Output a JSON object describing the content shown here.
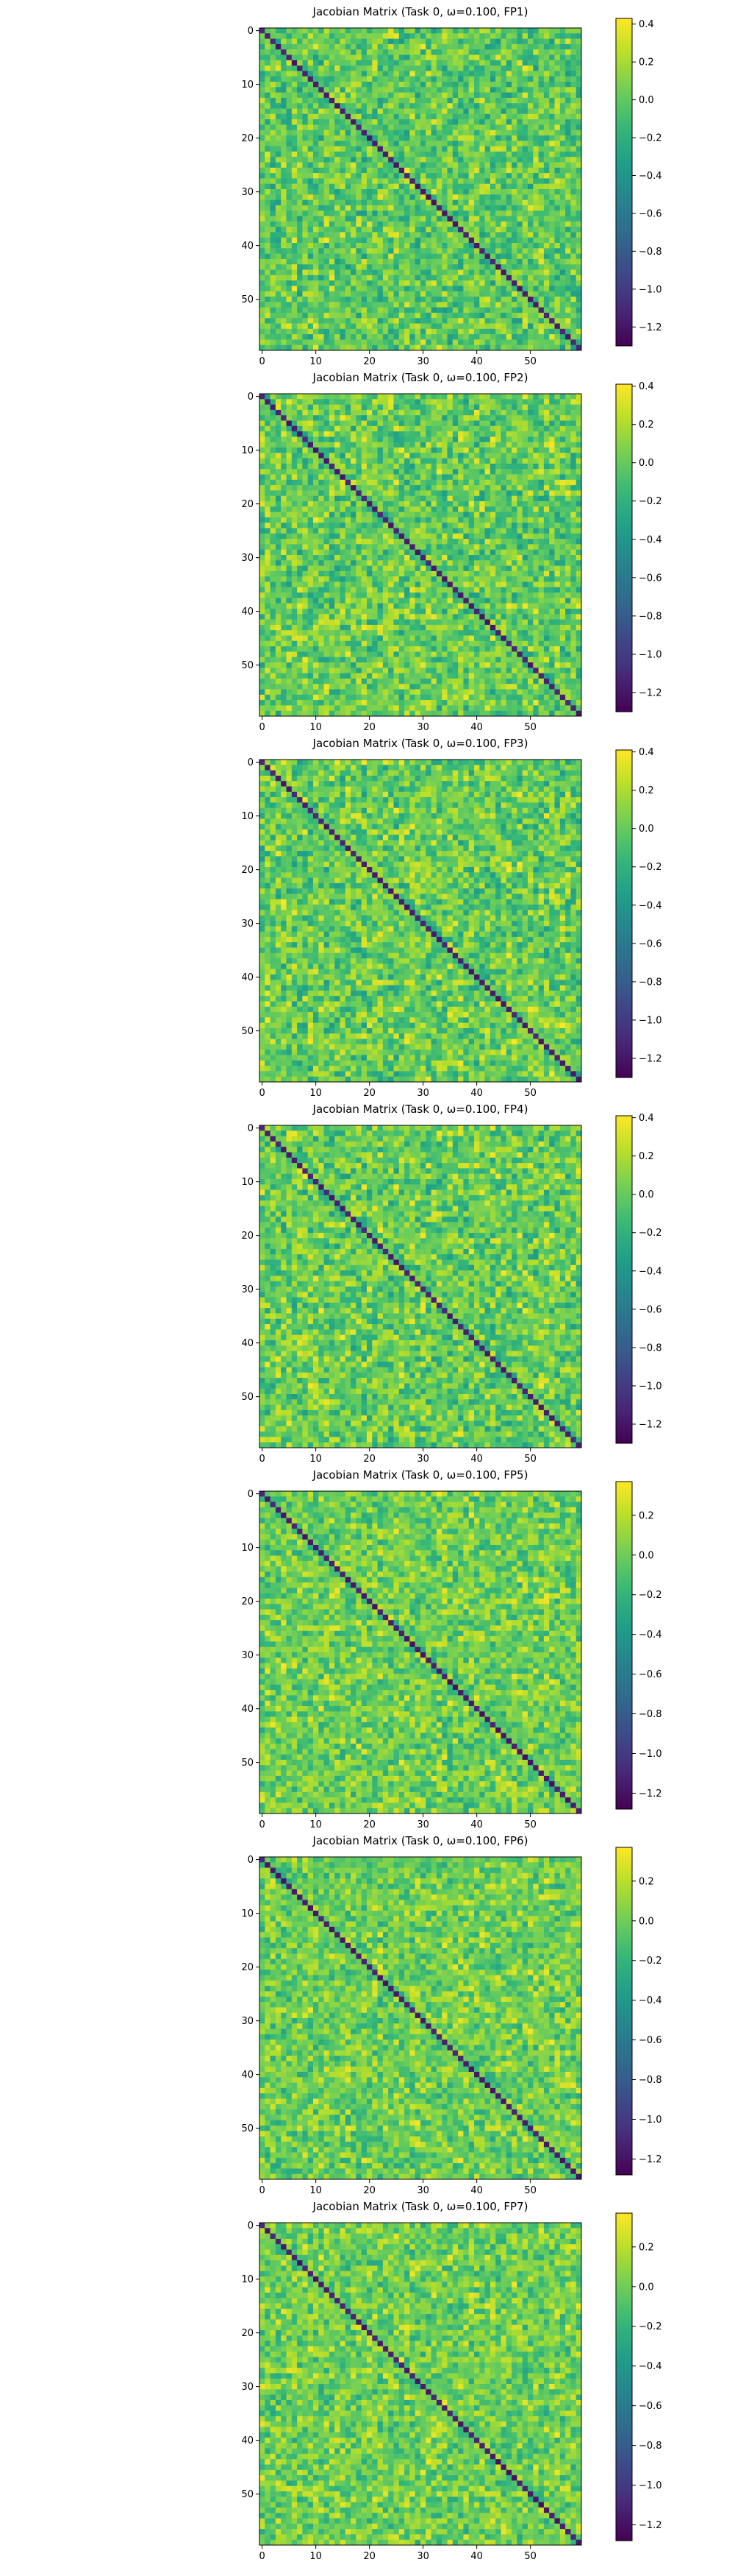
{
  "colormap": "viridis",
  "colormap_stops": [
    "#440154",
    "#482878",
    "#3e4989",
    "#31688e",
    "#26828e",
    "#1f9e89",
    "#35b779",
    "#6ece58",
    "#b5de2b",
    "#fde725"
  ],
  "chart_data": [
    {
      "type": "heatmap",
      "title": "Jacobian Matrix (Task 0, ω=0.100, FP1)",
      "shape": [
        60,
        60
      ],
      "xticks": [
        0,
        10,
        20,
        30,
        40,
        50
      ],
      "yticks": [
        0,
        10,
        20,
        30,
        40,
        50
      ],
      "colorbar": {
        "vmin": -1.3,
        "vmax": 0.43,
        "ticks": [
          0.4,
          0.2,
          0.0,
          -0.2,
          -0.4,
          -0.6,
          -0.8,
          -1.0,
          -1.2
        ],
        "tick_labels": [
          "0.4",
          "0.2",
          "0.0",
          "−0.2",
          "−0.4",
          "−0.6",
          "−0.8",
          "−1.0",
          "−1.2"
        ]
      },
      "values_summary": {
        "diagonal_approx": -1.15,
        "off_diagonal_range": [
          -0.35,
          0.4
        ],
        "off_diagonal_typical": 0.0
      }
    },
    {
      "type": "heatmap",
      "title": "Jacobian Matrix (Task 0, ω=0.100, FP2)",
      "shape": [
        60,
        60
      ],
      "xticks": [
        0,
        10,
        20,
        30,
        40,
        50
      ],
      "yticks": [
        0,
        10,
        20,
        30,
        40,
        50
      ],
      "colorbar": {
        "vmin": -1.3,
        "vmax": 0.41,
        "ticks": [
          0.4,
          0.2,
          0.0,
          -0.2,
          -0.4,
          -0.6,
          -0.8,
          -1.0,
          -1.2
        ],
        "tick_labels": [
          "0.4",
          "0.2",
          "0.0",
          "−0.2",
          "−0.4",
          "−0.6",
          "−0.8",
          "−1.0",
          "−1.2"
        ]
      },
      "values_summary": {
        "diagonal_approx": -1.15,
        "off_diagonal_range": [
          -0.35,
          0.4
        ],
        "off_diagonal_typical": 0.0
      }
    },
    {
      "type": "heatmap",
      "title": "Jacobian Matrix (Task 0, ω=0.100, FP3)",
      "shape": [
        60,
        60
      ],
      "xticks": [
        0,
        10,
        20,
        30,
        40,
        50
      ],
      "yticks": [
        0,
        10,
        20,
        30,
        40,
        50
      ],
      "colorbar": {
        "vmin": -1.3,
        "vmax": 0.41,
        "ticks": [
          0.4,
          0.2,
          0.0,
          -0.2,
          -0.4,
          -0.6,
          -0.8,
          -1.0,
          -1.2
        ],
        "tick_labels": [
          "0.4",
          "0.2",
          "0.0",
          "−0.2",
          "−0.4",
          "−0.6",
          "−0.8",
          "−1.0",
          "−1.2"
        ]
      },
      "values_summary": {
        "diagonal_approx": -1.15,
        "off_diagonal_range": [
          -0.35,
          0.4
        ],
        "off_diagonal_typical": 0.0
      }
    },
    {
      "type": "heatmap",
      "title": "Jacobian Matrix (Task 0, ω=0.100, FP4)",
      "shape": [
        60,
        60
      ],
      "xticks": [
        0,
        10,
        20,
        30,
        40,
        50
      ],
      "yticks": [
        0,
        10,
        20,
        30,
        40,
        50
      ],
      "colorbar": {
        "vmin": -1.3,
        "vmax": 0.41,
        "ticks": [
          0.4,
          0.2,
          0.0,
          -0.2,
          -0.4,
          -0.6,
          -0.8,
          -1.0,
          -1.2
        ],
        "tick_labels": [
          "0.4",
          "0.2",
          "0.0",
          "−0.2",
          "−0.4",
          "−0.6",
          "−0.8",
          "−1.0",
          "−1.2"
        ]
      },
      "values_summary": {
        "diagonal_approx": -1.15,
        "off_diagonal_range": [
          -0.35,
          0.4
        ],
        "off_diagonal_typical": 0.0
      }
    },
    {
      "type": "heatmap",
      "title": "Jacobian Matrix (Task 0, ω=0.100, FP5)",
      "shape": [
        60,
        60
      ],
      "xticks": [
        0,
        10,
        20,
        30,
        40,
        50
      ],
      "yticks": [
        0,
        10,
        20,
        30,
        40,
        50
      ],
      "colorbar": {
        "vmin": -1.28,
        "vmax": 0.37,
        "ticks": [
          0.2,
          0.0,
          -0.2,
          -0.4,
          -0.6,
          -0.8,
          -1.0,
          -1.2
        ],
        "tick_labels": [
          "0.2",
          "0.0",
          "−0.2",
          "−0.4",
          "−0.6",
          "−0.8",
          "−1.0",
          "−1.2"
        ]
      },
      "values_summary": {
        "diagonal_approx": -1.15,
        "off_diagonal_range": [
          -0.3,
          0.35
        ],
        "off_diagonal_typical": 0.0
      }
    },
    {
      "type": "heatmap",
      "title": "Jacobian Matrix (Task 0, ω=0.100, FP6)",
      "shape": [
        60,
        60
      ],
      "xticks": [
        0,
        10,
        20,
        30,
        40,
        50
      ],
      "yticks": [
        0,
        10,
        20,
        30,
        40,
        50
      ],
      "colorbar": {
        "vmin": -1.28,
        "vmax": 0.37,
        "ticks": [
          0.2,
          0.0,
          -0.2,
          -0.4,
          -0.6,
          -0.8,
          -1.0,
          -1.2
        ],
        "tick_labels": [
          "0.2",
          "0.0",
          "−0.2",
          "−0.4",
          "−0.6",
          "−0.8",
          "−1.0",
          "−1.2"
        ]
      },
      "values_summary": {
        "diagonal_approx": -1.15,
        "off_diagonal_range": [
          -0.3,
          0.35
        ],
        "off_diagonal_typical": 0.0
      }
    },
    {
      "type": "heatmap",
      "title": "Jacobian Matrix (Task 0, ω=0.100, FP7)",
      "shape": [
        60,
        60
      ],
      "xticks": [
        0,
        10,
        20,
        30,
        40,
        50
      ],
      "yticks": [
        0,
        10,
        20,
        30,
        40,
        50
      ],
      "colorbar": {
        "vmin": -1.28,
        "vmax": 0.37,
        "ticks": [
          0.2,
          0.0,
          -0.2,
          -0.4,
          -0.6,
          -0.8,
          -1.0,
          -1.2
        ],
        "tick_labels": [
          "0.2",
          "0.0",
          "−0.2",
          "−0.4",
          "−0.6",
          "−0.8",
          "−1.0",
          "−1.2"
        ]
      },
      "values_summary": {
        "diagonal_approx": -1.15,
        "off_diagonal_range": [
          -0.3,
          0.35
        ],
        "off_diagonal_typical": 0.0
      }
    }
  ]
}
